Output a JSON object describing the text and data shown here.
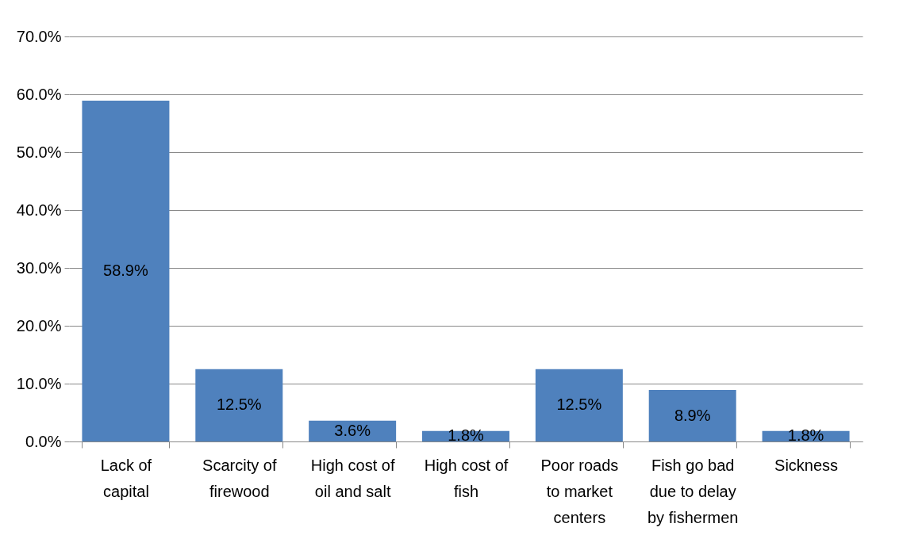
{
  "chart_data": {
    "type": "bar",
    "categories": [
      "Lack of capital",
      "Scarcity of firewood",
      "High cost of oil and salt",
      "High cost of fish",
      "Poor roads to market centers",
      "Fish go bad due to delay by fishermen",
      "Sickness"
    ],
    "values": [
      58.9,
      12.5,
      3.6,
      1.8,
      12.5,
      8.9,
      1.8
    ],
    "value_labels": [
      "58.9%",
      "12.5%",
      "3.6%",
      "1.8%",
      "12.5%",
      "8.9%",
      "1.8%"
    ],
    "color": "#4f81bd",
    "ylim": [
      0,
      70
    ],
    "yticks": [
      {
        "value": 0,
        "label": "0.0%"
      },
      {
        "value": 10,
        "label": "10.0%"
      },
      {
        "value": 20,
        "label": "20.0%"
      },
      {
        "value": 30,
        "label": "30.0%"
      },
      {
        "value": 40,
        "label": "40.0%"
      },
      {
        "value": 50,
        "label": "50.0%"
      },
      {
        "value": 60,
        "label": "60.0%"
      },
      {
        "value": 70,
        "label": "70.0%"
      }
    ],
    "grid": "y"
  }
}
